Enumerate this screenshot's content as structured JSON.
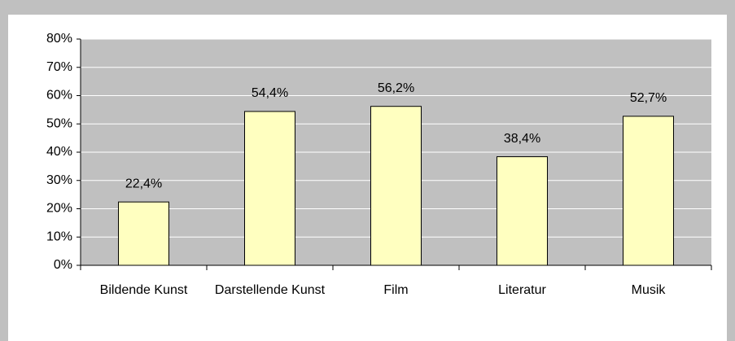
{
  "chart_data": {
    "type": "bar",
    "categories": [
      "Bildende Kunst",
      "Darstellende Kunst",
      "Film",
      "Literatur",
      "Musik"
    ],
    "values": [
      22.4,
      54.4,
      56.2,
      38.4,
      52.7
    ],
    "value_labels": [
      "22,4%",
      "54,4%",
      "56,2%",
      "38,4%",
      "52,7%"
    ],
    "color": "#ffffc0",
    "ylim": [
      0,
      80
    ],
    "yticks": [
      {
        "value": 0,
        "label": "0%"
      },
      {
        "value": 10,
        "label": "10%"
      },
      {
        "value": 20,
        "label": "20%"
      },
      {
        "value": 30,
        "label": "30%"
      },
      {
        "value": 40,
        "label": "40%"
      },
      {
        "value": 50,
        "label": "50%"
      },
      {
        "value": 60,
        "label": "60%"
      },
      {
        "value": 70,
        "label": "70%"
      },
      {
        "value": 80,
        "label": "80%"
      }
    ],
    "grid": true
  }
}
